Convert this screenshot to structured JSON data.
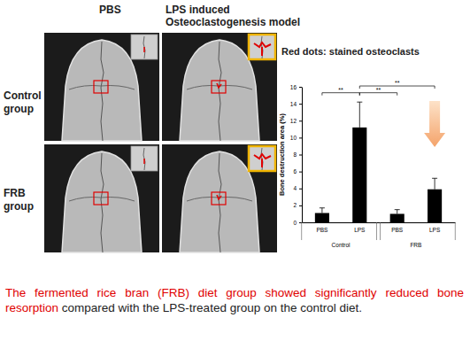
{
  "chart_data": {
    "type": "bar",
    "y_label": "Bone destruction area (%)",
    "categories": [
      "PBS",
      "LPS",
      "PBS",
      "LPS"
    ],
    "values": [
      1.1,
      11.2,
      1.0,
      3.9
    ],
    "errors": [
      0.6,
      3.0,
      0.5,
      1.3
    ],
    "color": "#000000",
    "groups": [
      {
        "name": "Control",
        "span": [
          0,
          1
        ]
      },
      {
        "name": "FRB",
        "span": [
          2,
          3
        ]
      }
    ],
    "annotations": [
      {
        "label": "**",
        "from": 0,
        "to": 1,
        "y": 15.3
      },
      {
        "label": "**",
        "from": 1,
        "to": 2,
        "y": 15.3
      },
      {
        "label": "**",
        "from": 1,
        "to": 3,
        "y": 16.1
      }
    ],
    "ylim": [
      0,
      16
    ],
    "yticks": [
      0,
      2,
      4,
      6,
      8,
      10,
      12,
      14,
      16
    ],
    "grid": false
  },
  "slide": {
    "column_headers": [
      [
        "PBS"
      ],
      [
        "LPS induced",
        "Osteoclastogenesis model"
      ]
    ],
    "row_labels": [
      [
        "Control",
        "group"
      ],
      [
        "FRB",
        "group"
      ]
    ],
    "note": "Red dots: stained osteoclasts",
    "caption_highlight": "The fermented rice bran (FRB) diet group showed significantly reduced bone resorption",
    "caption_rest": " compared with the LPS-treated group on the control diet."
  }
}
